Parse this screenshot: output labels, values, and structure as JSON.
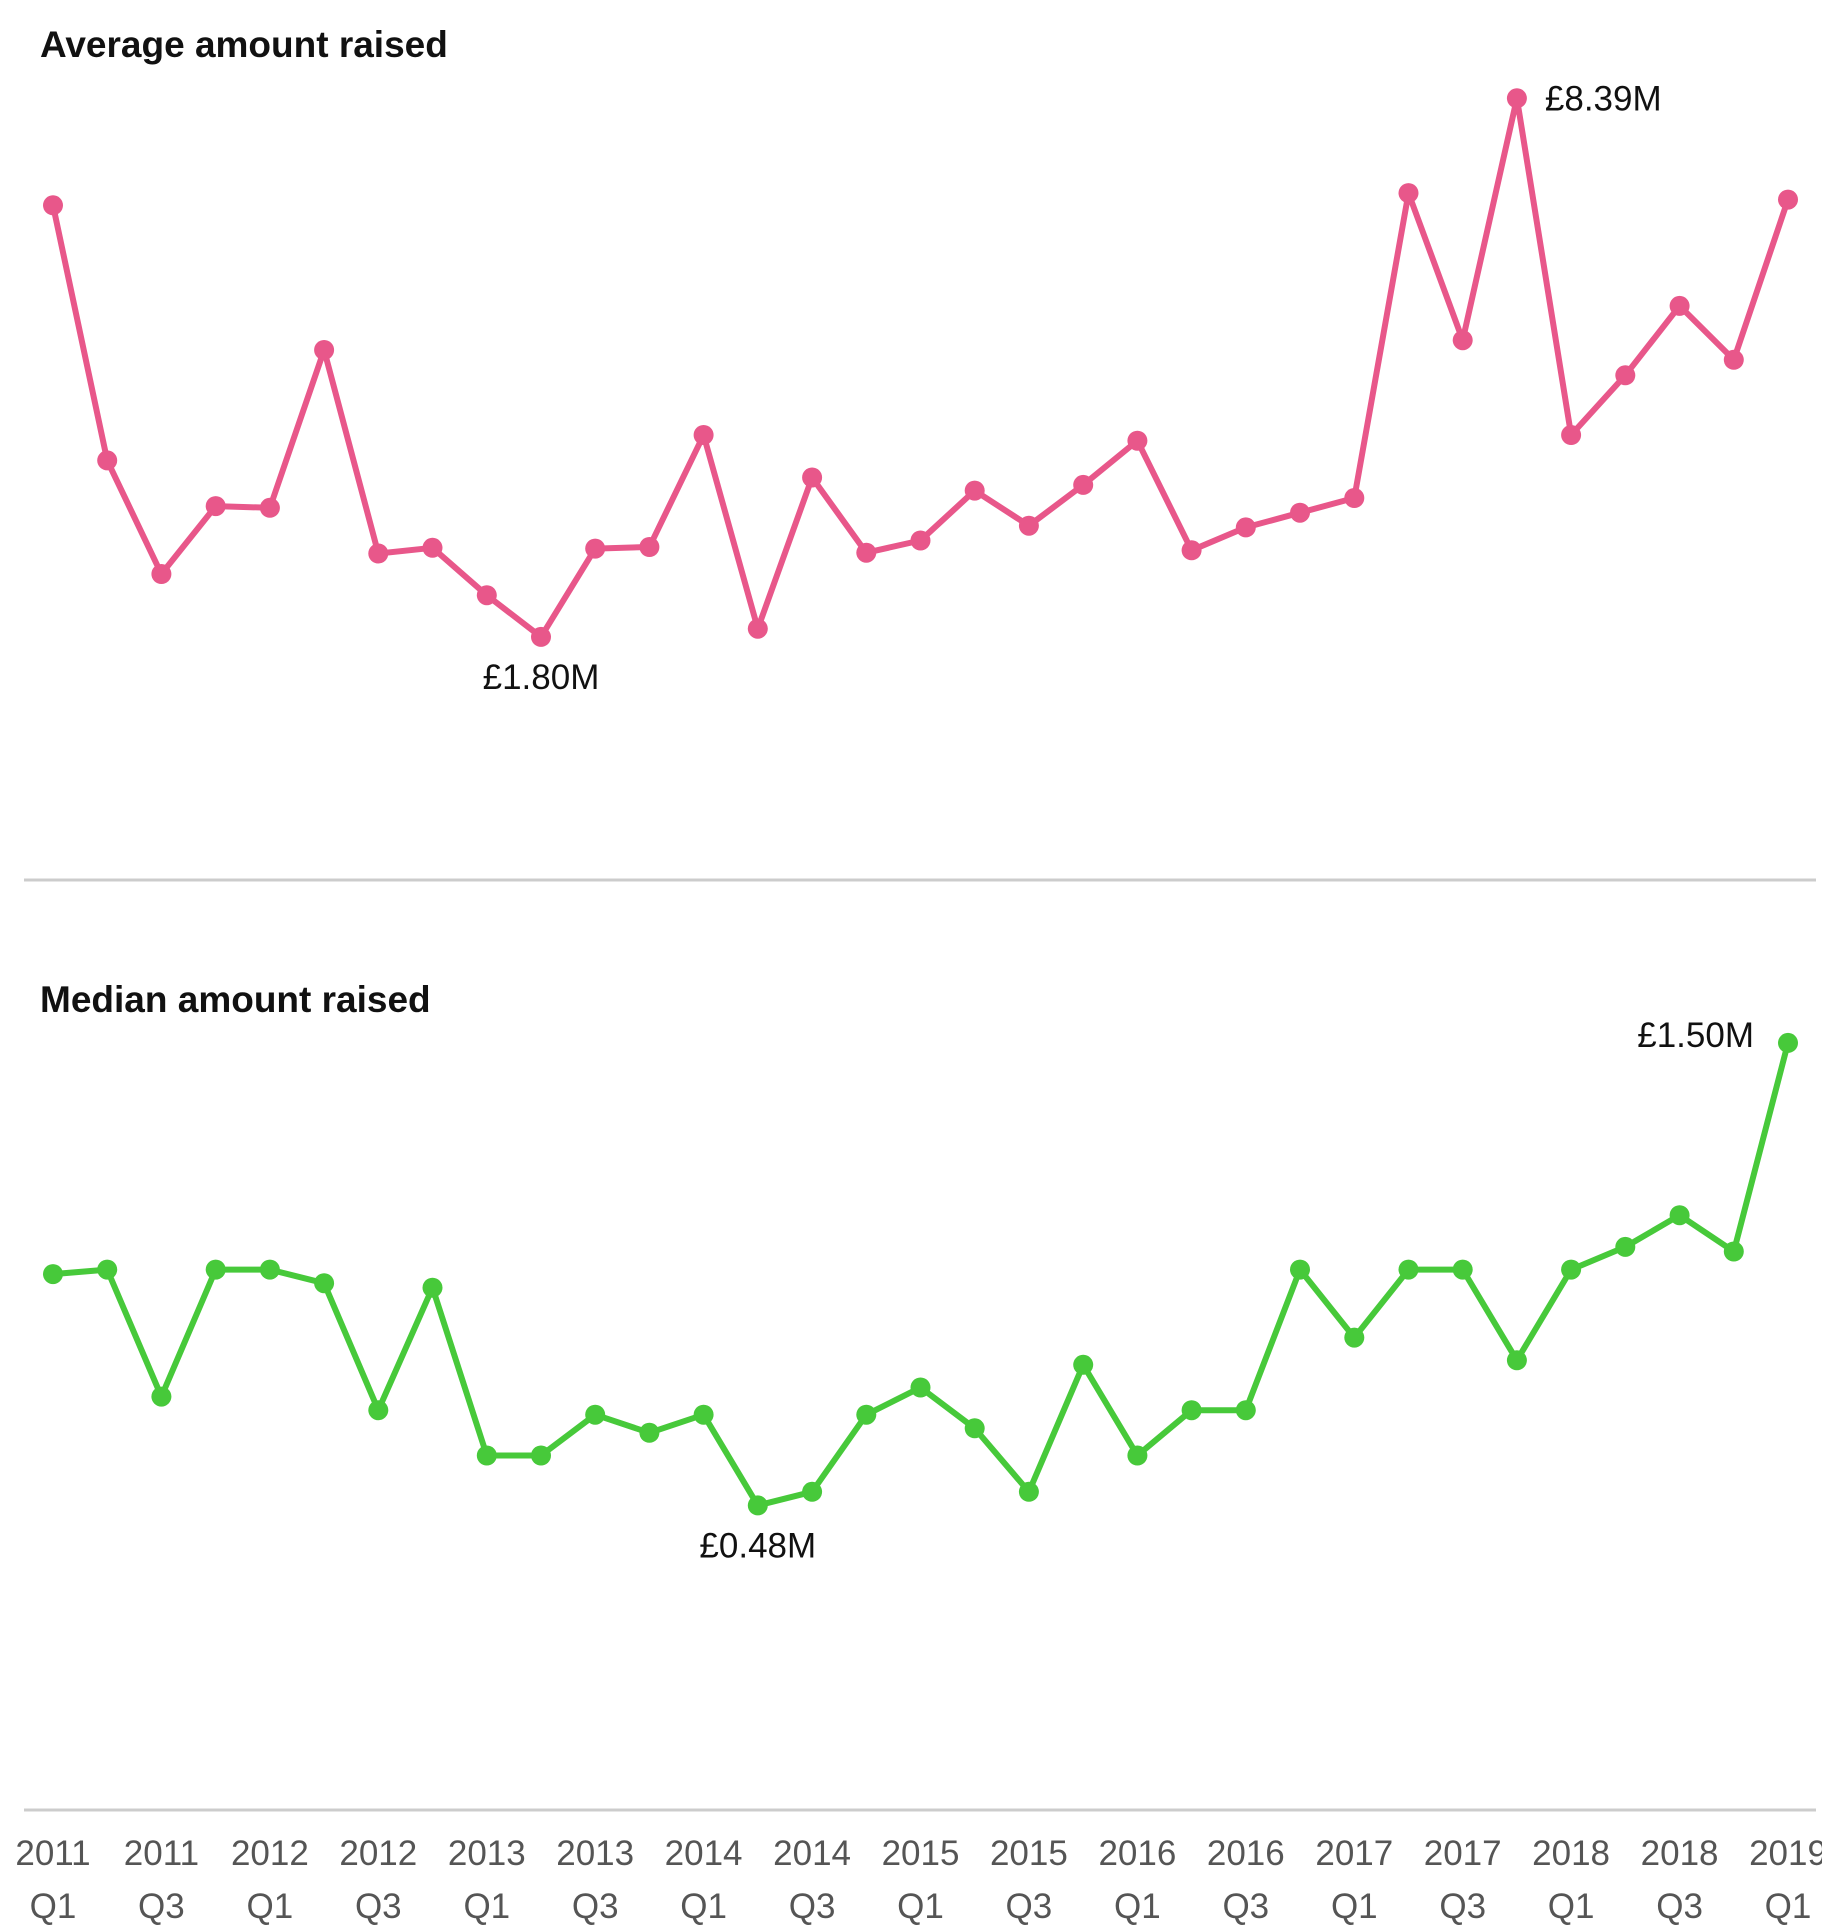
{
  "chart_data": [
    {
      "type": "line",
      "title": "Average amount raised",
      "unit": "£M",
      "color": "#e8578a",
      "x": [
        "2011 Q1",
        "2011 Q2",
        "2011 Q3",
        "2011 Q4",
        "2012 Q1",
        "2012 Q2",
        "2012 Q3",
        "2012 Q4",
        "2013 Q1",
        "2013 Q2",
        "2013 Q3",
        "2013 Q4",
        "2014 Q1",
        "2014 Q2",
        "2014 Q3",
        "2014 Q4",
        "2015 Q1",
        "2015 Q2",
        "2015 Q3",
        "2015 Q4",
        "2016 Q1",
        "2016 Q2",
        "2016 Q3",
        "2016 Q4",
        "2017 Q1",
        "2017 Q2",
        "2017 Q3",
        "2017 Q4",
        "2018 Q1",
        "2018 Q2",
        "2018 Q3",
        "2018 Q4",
        "2019 Q1"
      ],
      "values": [
        7.08,
        3.96,
        2.57,
        3.4,
        3.38,
        5.31,
        2.82,
        2.89,
        2.31,
        1.8,
        2.88,
        2.9,
        4.27,
        1.9,
        3.75,
        2.83,
        2.98,
        3.59,
        3.16,
        3.66,
        4.2,
        2.86,
        3.14,
        3.32,
        3.5,
        7.23,
        5.43,
        8.39,
        4.27,
        5.0,
        5.85,
        5.19,
        7.15
      ],
      "ylim": [
        1.0,
        9.0
      ],
      "annotations": [
        {
          "index": 27,
          "label": "£8.39M",
          "position": "right"
        },
        {
          "index": 9,
          "label": "£1.80M",
          "position": "below"
        }
      ]
    },
    {
      "type": "line",
      "title": "Median amount raised",
      "unit": "£M",
      "color": "#47c93a",
      "x": [
        "2011 Q1",
        "2011 Q2",
        "2011 Q3",
        "2011 Q4",
        "2012 Q1",
        "2012 Q2",
        "2012 Q3",
        "2012 Q4",
        "2013 Q1",
        "2013 Q2",
        "2013 Q3",
        "2013 Q4",
        "2014 Q1",
        "2014 Q2",
        "2014 Q3",
        "2014 Q4",
        "2015 Q1",
        "2015 Q2",
        "2015 Q3",
        "2015 Q4",
        "2016 Q1",
        "2016 Q2",
        "2016 Q3",
        "2016 Q4",
        "2017 Q1",
        "2017 Q2",
        "2017 Q3",
        "2017 Q4",
        "2018 Q1",
        "2018 Q2",
        "2018 Q3",
        "2018 Q4",
        "2019 Q1"
      ],
      "values": [
        0.99,
        1.0,
        0.72,
        1.0,
        1.0,
        0.97,
        0.69,
        0.96,
        0.59,
        0.59,
        0.68,
        0.64,
        0.68,
        0.48,
        0.51,
        0.68,
        0.74,
        0.65,
        0.51,
        0.79,
        0.59,
        0.69,
        0.69,
        1.0,
        0.85,
        1.0,
        1.0,
        0.8,
        1.0,
        1.05,
        1.12,
        1.04,
        1.5
      ],
      "ylim": [
        0.0,
        1.8
      ],
      "annotations": [
        {
          "index": 32,
          "label": "£1.50M",
          "position": "left"
        },
        {
          "index": 13,
          "label": "£0.48M",
          "position": "below"
        }
      ]
    }
  ],
  "x_axis": {
    "tick_labels": [
      {
        "index": 0,
        "year": "2011",
        "quarter": "Q1"
      },
      {
        "index": 2,
        "year": "2011",
        "quarter": "Q3"
      },
      {
        "index": 4,
        "year": "2012",
        "quarter": "Q1"
      },
      {
        "index": 6,
        "year": "2012",
        "quarter": "Q3"
      },
      {
        "index": 8,
        "year": "2013",
        "quarter": "Q1"
      },
      {
        "index": 10,
        "year": "2013",
        "quarter": "Q3"
      },
      {
        "index": 12,
        "year": "2014",
        "quarter": "Q1"
      },
      {
        "index": 14,
        "year": "2014",
        "quarter": "Q3"
      },
      {
        "index": 16,
        "year": "2015",
        "quarter": "Q1"
      },
      {
        "index": 18,
        "year": "2015",
        "quarter": "Q3"
      },
      {
        "index": 20,
        "year": "2016",
        "quarter": "Q1"
      },
      {
        "index": 22,
        "year": "2016",
        "quarter": "Q3"
      },
      {
        "index": 24,
        "year": "2017",
        "quarter": "Q1"
      },
      {
        "index": 26,
        "year": "2017",
        "quarter": "Q3"
      },
      {
        "index": 28,
        "year": "2018",
        "quarter": "Q1"
      },
      {
        "index": 30,
        "year": "2018",
        "quarter": "Q3"
      },
      {
        "index": 32,
        "year": "2019",
        "quarter": "Q1"
      }
    ]
  },
  "style": {
    "divider_color": "#cccccc",
    "axis_color": "#cccccc",
    "tick_label_color": "#555555",
    "title_color": "#111111"
  }
}
